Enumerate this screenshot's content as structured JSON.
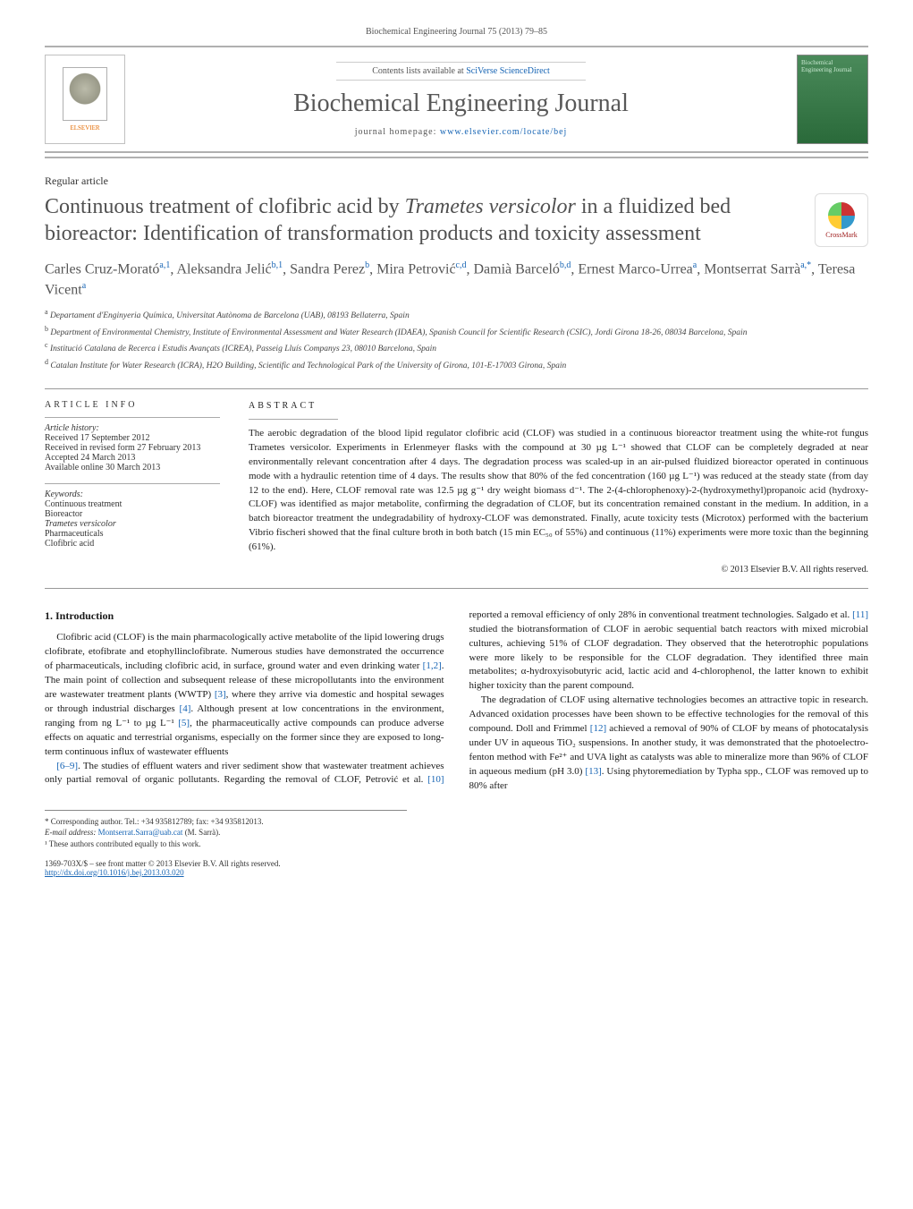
{
  "colors": {
    "link": "#1664b4",
    "rule": "#b0b0b0",
    "title_gray": "#505050",
    "elsevier_orange": "#e46b00",
    "cover_green_top": "#4a8a5a",
    "cover_green_bottom": "#2a6a3a",
    "text": "#1a1a1a"
  },
  "typography": {
    "body_family": "Georgia, 'Times New Roman', serif",
    "journal_title_pt": 28,
    "article_title_pt": 24,
    "authors_pt": 16,
    "body_pt": 11,
    "small_pt": 10,
    "fn_pt": 9
  },
  "header": {
    "running": "Biochemical Engineering Journal 75 (2013) 79–85",
    "contents_prefix": "Contents lists available at ",
    "contents_link": "SciVerse ScienceDirect",
    "journal_title": "Biochemical Engineering Journal",
    "homepage_prefix": "journal homepage: ",
    "homepage_link": "www.elsevier.com/locate/bej",
    "elsevier_label": "ELSEVIER",
    "cover_text": "Biochemical\nEngineering\nJournal"
  },
  "article": {
    "type": "Regular article",
    "title_html": "Continuous treatment of clofibric acid by <em>Trametes versicolor</em> in a fluidized bed bioreactor: Identification of transformation products and toxicity assessment",
    "crossmark": "CrossMark",
    "authors_html": "Carles Cruz-Morató<sup>a,1</sup>, Aleksandra Jelić<sup>b,1</sup>, Sandra Perez<sup>b</sup>, Mira Petrović<sup>c,d</sup>, Damià Barceló<sup>b,d</sup>, Ernest Marco-Urrea<sup>a</sup>, Montserrat Sarrà<sup>a,*</sup>, Teresa Vicent<sup>a</sup>",
    "affiliations": [
      "a Departament d'Enginyeria Química, Universitat Autònoma de Barcelona (UAB), 08193 Bellaterra, Spain",
      "b Department of Environmental Chemistry, Institute of Environmental Assessment and Water Research (IDAEA), Spanish Council for Scientific Research (CSIC), Jordi Girona 18-26, 08034 Barcelona, Spain",
      "c Institució Catalana de Recerca i Estudis Avançats (ICREA), Passeig Lluís Companys 23, 08010 Barcelona, Spain",
      "d Catalan Institute for Water Research (ICRA), H2O Building, Scientific and Technological Park of the University of Girona, 101-E-17003 Girona, Spain"
    ]
  },
  "info": {
    "head": "article info",
    "history_label": "Article history:",
    "history": [
      "Received 17 September 2012",
      "Received in revised form 27 February 2013",
      "Accepted 24 March 2013",
      "Available online 30 March 2013"
    ],
    "keywords_label": "Keywords:",
    "keywords": [
      "Continuous treatment",
      "Bioreactor",
      "Trametes versicolor",
      "Pharmaceuticals",
      "Clofibric acid"
    ]
  },
  "abstract": {
    "head": "abstract",
    "text": "The aerobic degradation of the blood lipid regulator clofibric acid (CLOF) was studied in a continuous bioreactor treatment using the white-rot fungus Trametes versicolor. Experiments in Erlenmeyer flasks with the compound at 30 µg L⁻¹ showed that CLOF can be completely degraded at near environmentally relevant concentration after 4 days. The degradation process was scaled-up in an air-pulsed fluidized bioreactor operated in continuous mode with a hydraulic retention time of 4 days. The results show that 80% of the fed concentration (160 µg L⁻¹) was reduced at the steady state (from day 12 to the end). Here, CLOF removal rate was 12.5 µg g⁻¹ dry weight biomass d⁻¹. The 2-(4-chlorophenoxy)-2-(hydroxymethyl)propanoic acid (hydroxy-CLOF) was identified as major metabolite, confirming the degradation of CLOF, but its concentration remained constant in the medium. In addition, in a batch bioreactor treatment the undegradability of hydroxy-CLOF was demonstrated. Finally, acute toxicity tests (Microtox) performed with the bacterium Vibrio fischeri showed that the final culture broth in both batch (15 min EC₅₀ of 55%) and continuous (11%) experiments were more toxic than the beginning (61%).",
    "copyright": "© 2013 Elsevier B.V. All rights reserved."
  },
  "body": {
    "section1_head": "1. Introduction",
    "p1": "Clofibric acid (CLOF) is the main pharmacologically active metabolite of the lipid lowering drugs clofibrate, etofibrate and etophyllinclofibrate. Numerous studies have demonstrated the occurrence of pharmaceuticals, including clofibric acid, in surface, ground water and even drinking water [1,2]. The main point of collection and subsequent release of these micropollutants into the environment are wastewater treatment plants (WWTP) [3], where they arrive via domestic and hospital sewages or through industrial discharges [4]. Although present at low concentrations in the environment, ranging from ng L⁻¹ to µg L⁻¹ [5], the pharmaceutically active compounds can produce adverse effects on aquatic and terrestrial organisms, especially on the former since they are exposed to long-term continuous influx of wastewater effluents",
    "p2": "[6–9]. The studies of effluent waters and river sediment show that wastewater treatment achieves only partial removal of organic pollutants. Regarding the removal of CLOF, Petrović et al. [10] reported a removal efficiency of only 28% in conventional treatment technologies. Salgado et al. [11] studied the biotransformation of CLOF in aerobic sequential batch reactors with mixed microbial cultures, achieving 51% of CLOF degradation. They observed that the heterotrophic populations were more likely to be responsible for the CLOF degradation. They identified three main metabolites; α-hydroxyisobutyric acid, lactic acid and 4-chlorophenol, the latter known to exhibit higher toxicity than the parent compound.",
    "p3": "The degradation of CLOF using alternative technologies becomes an attractive topic in research. Advanced oxidation processes have been shown to be effective technologies for the removal of this compound. Doll and Frimmel [12] achieved a removal of 90% of CLOF by means of photocatalysis under UV in aqueous TiO₂ suspensions. In another study, it was demonstrated that the photoelectro-fenton method with Fe²⁺ and UVA light as catalysts was able to mineralize more than 96% of CLOF in aqueous medium (pH 3.0) [13]. Using phytoremediation by Typha spp., CLOF was removed up to 80% after",
    "refs_inline": [
      "[1,2]",
      "[3]",
      "[4]",
      "[5]",
      "[6–9]",
      "[10]",
      "[11]",
      "[12]",
      "[13]"
    ]
  },
  "footnotes": {
    "corr": "* Corresponding author. Tel.: +34 935812789; fax: +34 935812013.",
    "email_label": "E-mail address: ",
    "email": "Montserrat.Sarra@uab.cat",
    "email_suffix": " (M. Sarrà).",
    "equal": "¹ These authors contributed equally to this work."
  },
  "bottom": {
    "issn_line": "1369-703X/$ – see front matter © 2013 Elsevier B.V. All rights reserved.",
    "doi": "http://dx.doi.org/10.1016/j.bej.2013.03.020"
  }
}
